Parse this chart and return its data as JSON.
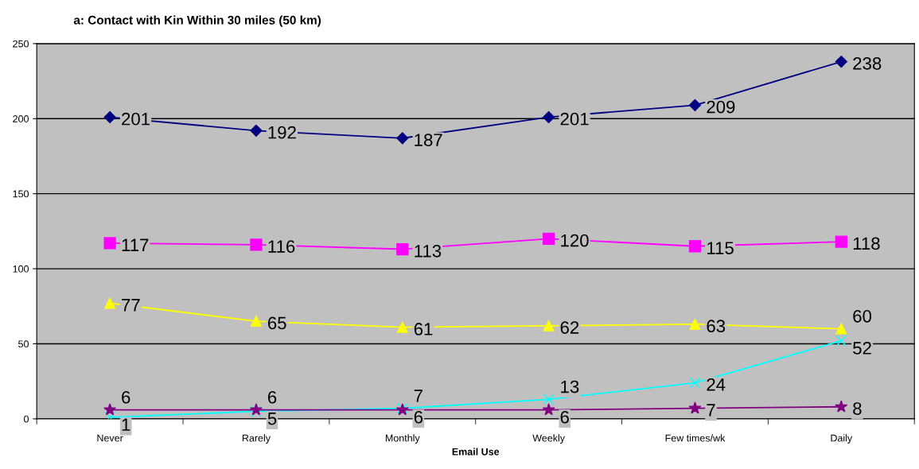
{
  "chart_data": {
    "type": "line",
    "title": "a: Contact with Kin Within 30 miles (50 km)",
    "xlabel": "Email Use",
    "categories": [
      "Never",
      "Rarely",
      "Monthly",
      "Weekly",
      "Few times/wk",
      "Daily"
    ],
    "series": [
      {
        "color": "#000080",
        "marker": "diamond",
        "values": [
          201,
          192,
          187,
          201,
          209,
          238
        ]
      },
      {
        "color": "#ff00ff",
        "marker": "square",
        "values": [
          117,
          116,
          113,
          120,
          115,
          118
        ]
      },
      {
        "color": "#ffff00",
        "marker": "triangle",
        "values": [
          77,
          65,
          61,
          62,
          63,
          60
        ]
      },
      {
        "color": "#00ffff",
        "marker": "cross",
        "values": [
          1,
          5,
          7,
          13,
          24,
          52
        ]
      },
      {
        "color": "#800080",
        "marker": "star",
        "values": [
          6,
          6,
          6,
          6,
          7,
          8
        ]
      }
    ],
    "ylim": [
      0,
      250
    ],
    "yticks": [
      0,
      50,
      100,
      150,
      200,
      250
    ],
    "grid": "y",
    "data_labels": true,
    "line_style": "solid"
  }
}
